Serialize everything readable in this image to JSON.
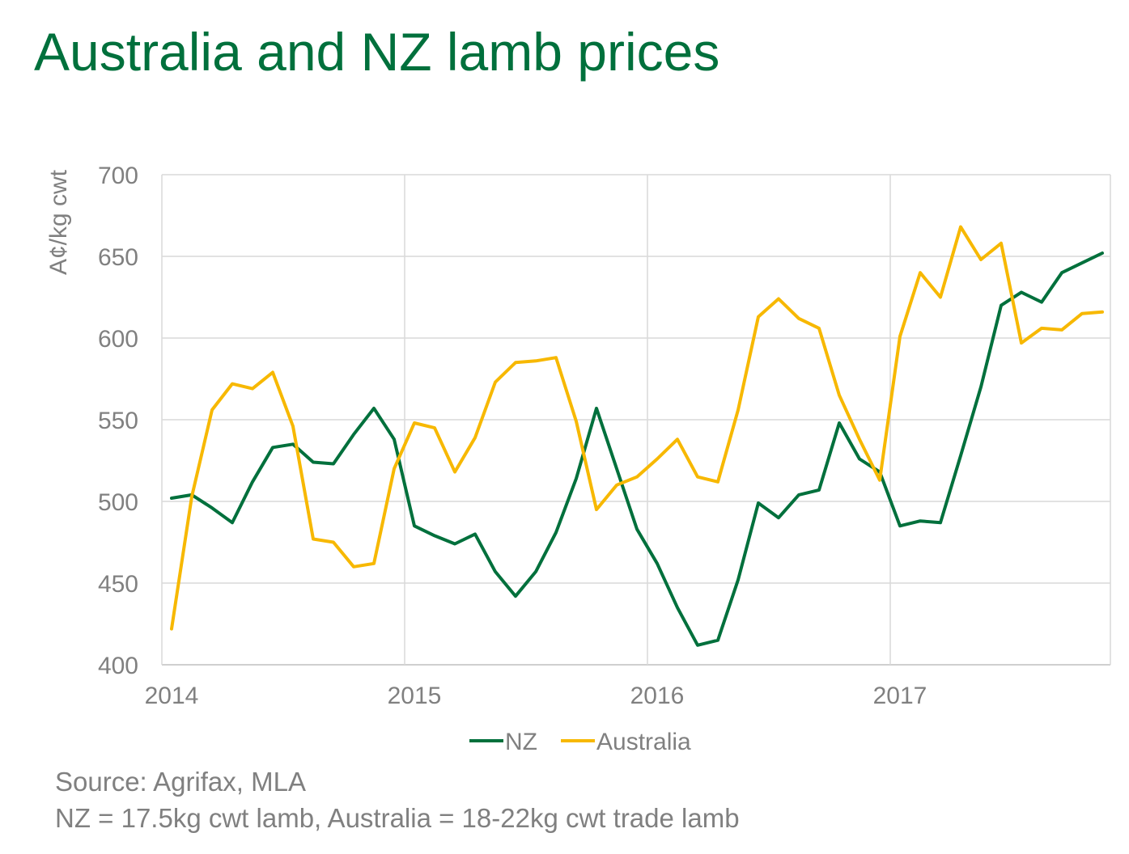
{
  "title": "Australia and NZ lamb prices",
  "source": "Source: Agrifax, MLA",
  "note": "NZ = 17.5kg cwt lamb, Australia = 18-22kg cwt trade lamb",
  "colors": {
    "nz": "#00703c",
    "australia": "#f7b800",
    "title": "#00703c",
    "grid": "#d9d9d9",
    "text": "#808080"
  },
  "chart_data": {
    "type": "line",
    "ylabel": "A¢/kg cwt",
    "ylim": [
      400,
      700
    ],
    "yticks": [
      400,
      450,
      500,
      550,
      600,
      650,
      700
    ],
    "xlim": [
      "2014-01",
      "2017-12"
    ],
    "xticks": [
      {
        "label": "2014",
        "x": "2014-01"
      },
      {
        "label": "2015",
        "x": "2015-01"
      },
      {
        "label": "2016",
        "x": "2016-01"
      },
      {
        "label": "2017",
        "x": "2017-01"
      }
    ],
    "grid": true,
    "legend": "bottom",
    "x": [
      "2014-01",
      "2014-02",
      "2014-03",
      "2014-04",
      "2014-05",
      "2014-06",
      "2014-07",
      "2014-08",
      "2014-09",
      "2014-10",
      "2014-11",
      "2014-12",
      "2015-01",
      "2015-02",
      "2015-03",
      "2015-04",
      "2015-05",
      "2015-06",
      "2015-07",
      "2015-08",
      "2015-09",
      "2015-10",
      "2015-11",
      "2015-12",
      "2016-01",
      "2016-02",
      "2016-03",
      "2016-04",
      "2016-05",
      "2016-06",
      "2016-07",
      "2016-08",
      "2016-09",
      "2016-10",
      "2016-11",
      "2016-12",
      "2017-01",
      "2017-02",
      "2017-03",
      "2017-04",
      "2017-05",
      "2017-06",
      "2017-07",
      "2017-08",
      "2017-09",
      "2017-10",
      "2017-11",
      "2017-12"
    ],
    "series": [
      {
        "name": "NZ",
        "values": [
          502,
          504,
          496,
          487,
          512,
          533,
          535,
          524,
          523,
          541,
          557,
          538,
          485,
          479,
          474,
          480,
          457,
          442,
          457,
          481,
          514,
          557,
          520,
          483,
          462,
          435,
          412,
          415,
          452,
          499,
          490,
          504,
          507,
          548,
          526,
          518,
          485,
          488,
          487,
          528,
          570,
          620,
          628,
          622,
          640,
          646,
          652,
          null
        ]
      },
      {
        "name": "Australia",
        "values": [
          422,
          503,
          556,
          572,
          569,
          579,
          546,
          477,
          475,
          460,
          462,
          520,
          548,
          545,
          518,
          539,
          573,
          585,
          586,
          588,
          549,
          495,
          510,
          515,
          526,
          538,
          515,
          512,
          556,
          613,
          624,
          612,
          606,
          565,
          538,
          513,
          601,
          640,
          625,
          668,
          648,
          658,
          597,
          606,
          605,
          615,
          616,
          null
        ]
      }
    ]
  }
}
